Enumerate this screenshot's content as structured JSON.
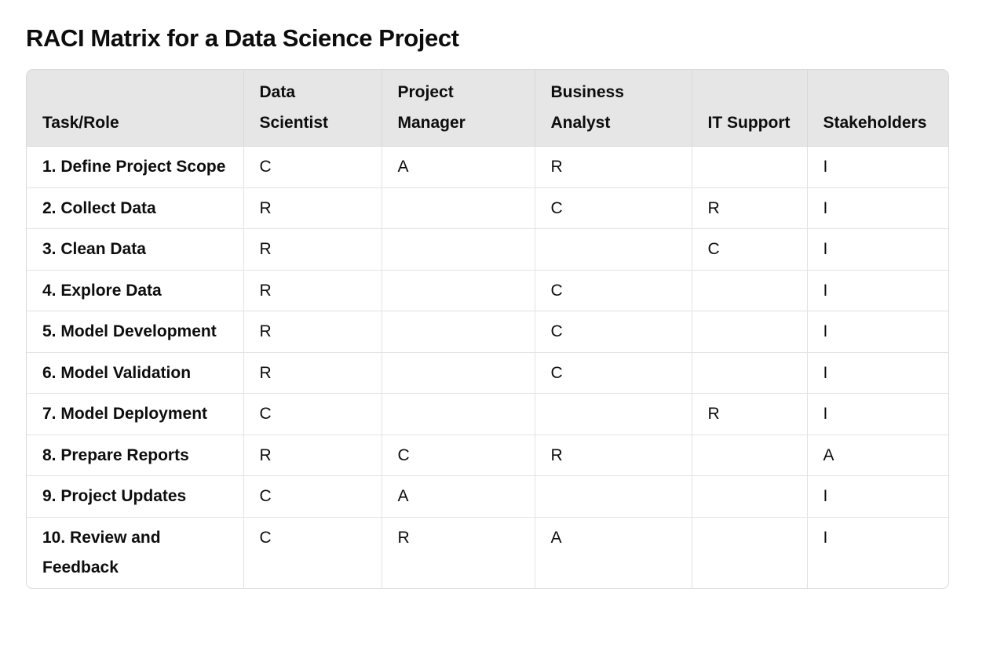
{
  "title": "RACI Matrix for a Data Science Project",
  "table": {
    "headers": [
      "Task/Role",
      "Data Scientist",
      "Project Manager",
      "Business Analyst",
      "IT Support",
      "Stakeholders"
    ],
    "rows": [
      [
        "1. Define Project Scope",
        "C",
        "A",
        "R",
        "",
        "I"
      ],
      [
        "2. Collect Data",
        "R",
        "",
        "C",
        "R",
        "I"
      ],
      [
        "3. Clean Data",
        "R",
        "",
        "",
        "C",
        "I"
      ],
      [
        "4. Explore Data",
        "R",
        "",
        "C",
        "",
        "I"
      ],
      [
        "5. Model Development",
        "R",
        "",
        "C",
        "",
        "I"
      ],
      [
        "6. Model Validation",
        "R",
        "",
        "C",
        "",
        "I"
      ],
      [
        "7. Model Deployment",
        "C",
        "",
        "",
        "R",
        "I"
      ],
      [
        "8. Prepare Reports",
        "R",
        "C",
        "R",
        "",
        "A"
      ],
      [
        "9. Project Updates",
        "C",
        "A",
        "",
        "",
        "I"
      ],
      [
        "10. Review and Feedback",
        "C",
        "R",
        "A",
        "",
        "I"
      ]
    ]
  }
}
